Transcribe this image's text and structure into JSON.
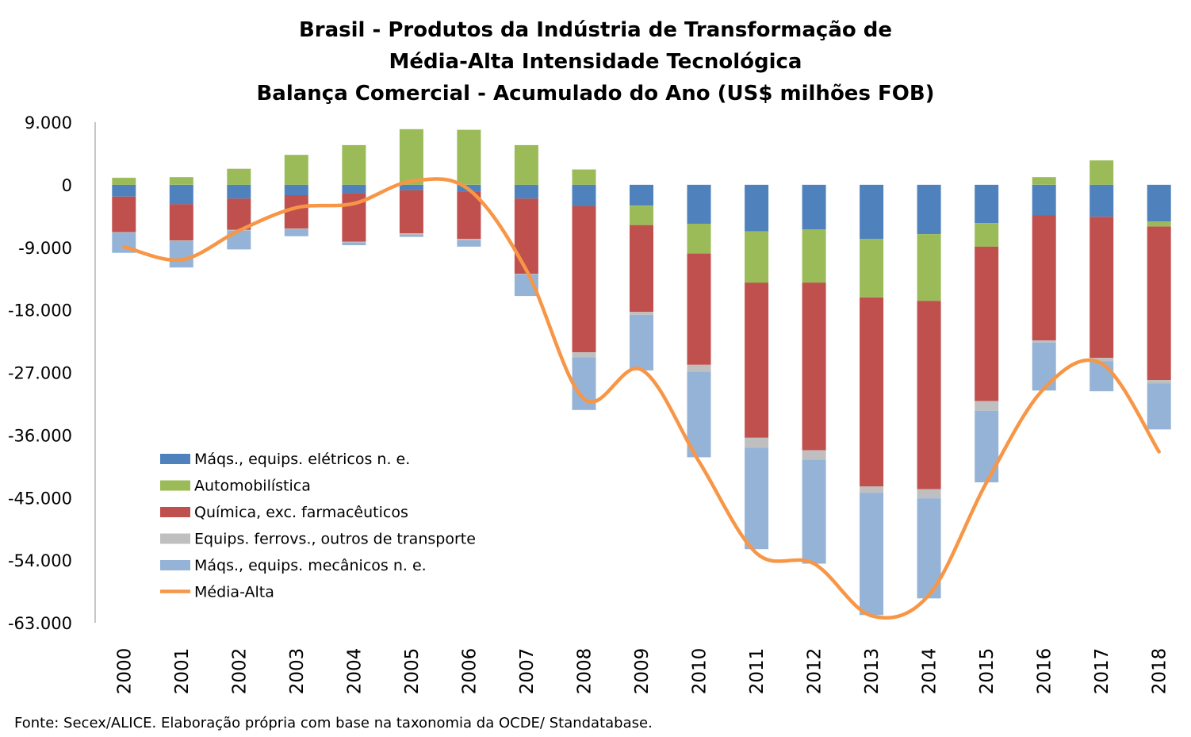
{
  "title_lines": [
    "Brasil - Produtos da Indústria de Transformação de",
    "Média-Alta Intensidade Tecnológica",
    "Balança Comercial - Acumulado do Ano (US$ milhões FOB)"
  ],
  "source": "Fonte: Secex/ALICE. Elaboração própria com base na taxonomia da OCDE/ Standatabase.",
  "chart_data": {
    "type": "bar",
    "stacked": true,
    "title": "Brasil - Produtos da Indústria de Transformação de Média-Alta Intensidade Tecnológica Balança Comercial - Acumulado do Ano (US$ milhões FOB)",
    "xlabel": "",
    "ylabel": "",
    "ylim": [
      -63000,
      9000
    ],
    "yticks": [
      9000,
      0,
      -9000,
      -18000,
      -27000,
      -36000,
      -45000,
      -54000,
      -63000
    ],
    "ytick_labels": [
      "9.000",
      "0",
      "-9.000",
      "-18.000",
      "-27.000",
      "-36.000",
      "-45.000",
      "-54.000",
      "-63.000"
    ],
    "grid": false,
    "legend_position": "lower-left",
    "categories": [
      "2000",
      "2001",
      "2002",
      "2003",
      "2004",
      "2005",
      "2006",
      "2007",
      "2008",
      "2009",
      "2010",
      "2011",
      "2012",
      "2013",
      "2014",
      "2015",
      "2016",
      "2017",
      "2018"
    ],
    "series": [
      {
        "name": "Máqs., equips. elétricos n. e.",
        "color": "#4F81BD",
        "values": [
          -1700,
          -2800,
          -2000,
          -1500,
          -1200,
          -800,
          -1000,
          -2000,
          -3100,
          -3000,
          -5600,
          -6700,
          -6400,
          -7800,
          -7100,
          -5500,
          -4400,
          -4600,
          -5300
        ]
      },
      {
        "name": "Automobilística",
        "color": "#9BBB59",
        "values": [
          1000,
          1100,
          2300,
          4300,
          5700,
          8000,
          7900,
          5700,
          2200,
          -2800,
          -4300,
          -7400,
          -7700,
          -8400,
          -9600,
          -3400,
          1100,
          3500,
          -700
        ]
      },
      {
        "name": "Química, exc. farmacêuticos",
        "color": "#C0504D",
        "values": [
          -5100,
          -5200,
          -4500,
          -4800,
          -7000,
          -6200,
          -6800,
          -10800,
          -21000,
          -12500,
          -16000,
          -22300,
          -24100,
          -27200,
          -27100,
          -22200,
          -18000,
          -20300,
          -22100
        ]
      },
      {
        "name": "Equips. ferrovs., outros de transporte",
        "color": "#BFBFBF",
        "values": [
          -100,
          -100,
          -100,
          -100,
          -100,
          -200,
          -200,
          -100,
          -700,
          -400,
          -1000,
          -1400,
          -1400,
          -900,
          -1300,
          -1400,
          -300,
          -500,
          -500
        ]
      },
      {
        "name": "Máqs., equips. mecânicos  n. e.",
        "color": "#95B3D7",
        "values": [
          -2900,
          -3800,
          -2700,
          -1000,
          -400,
          -300,
          -900,
          -3100,
          -7600,
          -8000,
          -12300,
          -14600,
          -14900,
          -17600,
          -14400,
          -10300,
          -6900,
          -4300,
          -6600
        ]
      },
      {
        "name": "Média-Alta",
        "type": "line",
        "color": "#F79646",
        "values": [
          -8900,
          -10800,
          -6600,
          -3300,
          -2700,
          500,
          -700,
          -12300,
          -30800,
          -26600,
          -39800,
          -53000,
          -54500,
          -62000,
          -59000,
          -42800,
          -29300,
          -25700,
          -38400
        ]
      }
    ]
  }
}
